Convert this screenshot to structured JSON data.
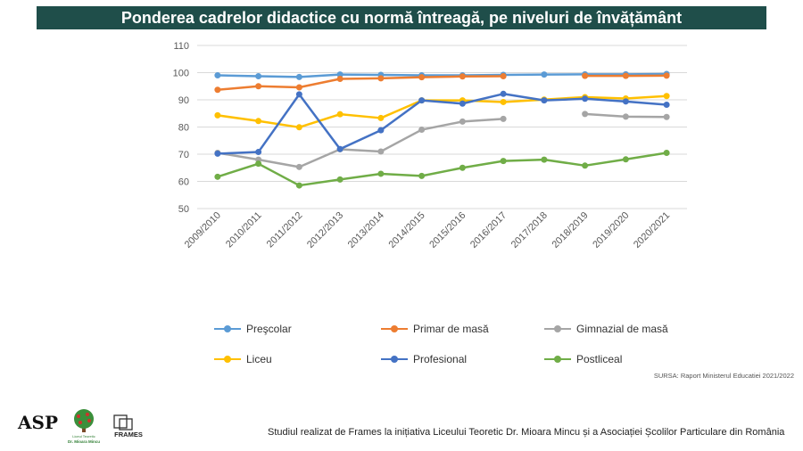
{
  "title": "Ponderea cadrelor didactice cu normă întreagă, pe niveluri de învățământ",
  "chart_data": {
    "type": "line",
    "categories": [
      "2009/2010",
      "2010/2011",
      "2011/2012",
      "2012/2013",
      "2013/2014",
      "2014/2015",
      "2015/2016",
      "2016/2017",
      "2017/2018",
      "2018/2019",
      "2019/2020",
      "2020/2021"
    ],
    "ylim": [
      50,
      110
    ],
    "yticks": [
      50,
      60,
      70,
      80,
      90,
      100,
      110
    ],
    "grid": true,
    "legend_position": "bottom",
    "series": [
      {
        "name": "Preşcolar",
        "color": "#5b9bd5",
        "values": [
          99,
          98.7,
          98.4,
          99.3,
          99.2,
          99,
          99,
          99.2,
          99.3,
          99.4,
          99.4,
          99.5
        ]
      },
      {
        "name": "Primar de masă",
        "color": "#ed7d31",
        "values": [
          93.7,
          95,
          94.6,
          97.7,
          97.9,
          98.3,
          98.6,
          98.7,
          null,
          98.8,
          98.8,
          98.9
        ]
      },
      {
        "name": "Gimnazial de masă",
        "color": "#a5a5a5",
        "values": [
          70.5,
          68,
          65.3,
          71.8,
          71,
          79,
          82,
          83,
          null,
          84.8,
          83.8,
          83.7
        ]
      },
      {
        "name": "Liceu",
        "color": "#ffc000",
        "values": [
          84.3,
          82.2,
          79.9,
          84.7,
          83.3,
          89.8,
          89.8,
          89.2,
          90.1,
          91,
          90.5,
          91.4
        ]
      },
      {
        "name": "Profesional",
        "color": "#4472c4",
        "values": [
          70.2,
          70.8,
          92,
          71.9,
          78.8,
          89.8,
          88.6,
          92.2,
          89.8,
          90.4,
          89.4,
          88.2
        ]
      },
      {
        "name": "Postliceal",
        "color": "#70ad47",
        "values": [
          61.7,
          66.5,
          58.5,
          60.7,
          62.8,
          62,
          65,
          67.5,
          68,
          65.8,
          68.1,
          70.5
        ]
      }
    ]
  },
  "source": "SURSA: Raport Ministerul Educatiei 2021/2022",
  "footer": "Studiul realizat de  Frames la inițiativa Liceului Teoretic Dr. Mioara Mincu și a Asociației Școlilor Particulare din România",
  "logos": {
    "asp": "ASP",
    "tree_caption_1": "Liceul Teoretic",
    "tree_caption_2": "Dr. Mioara Mincu",
    "frames": "FRAMES"
  }
}
